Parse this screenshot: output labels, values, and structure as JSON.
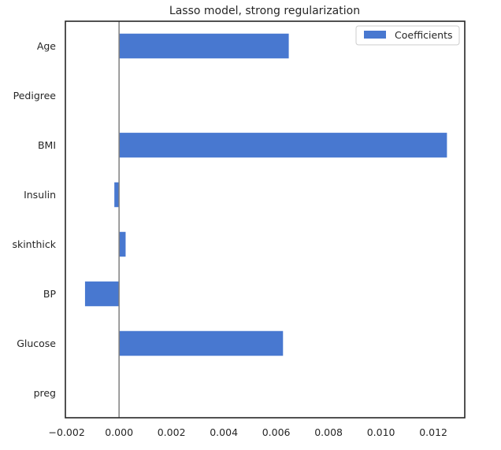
{
  "chart_data": {
    "type": "bar",
    "orientation": "horizontal",
    "title": "Lasso model, strong regularization",
    "xlabel": "",
    "ylabel": "",
    "categories": [
      "Age",
      "Pedigree",
      "BMI",
      "Insulin",
      "skinthick",
      "BP",
      "Glucose",
      "preg"
    ],
    "series": [
      {
        "name": "Coefficients",
        "values": [
          0.00648,
          0.0,
          0.01252,
          -0.00018,
          0.00025,
          -0.0013,
          0.00626,
          0.0
        ],
        "color": "#4878d0"
      }
    ],
    "xlim": [
      -0.00205,
      0.0132
    ],
    "xticks": [
      -0.002,
      0.0,
      0.002,
      0.004,
      0.006,
      0.008,
      0.01,
      0.012
    ],
    "xtick_labels": [
      "−0.002",
      "0.000",
      "0.002",
      "0.004",
      "0.006",
      "0.008",
      "0.010",
      "0.012"
    ],
    "zero_line": true,
    "zero_line_color": "#7f7f7f",
    "grid": false,
    "legend": {
      "position": "top-right"
    }
  }
}
